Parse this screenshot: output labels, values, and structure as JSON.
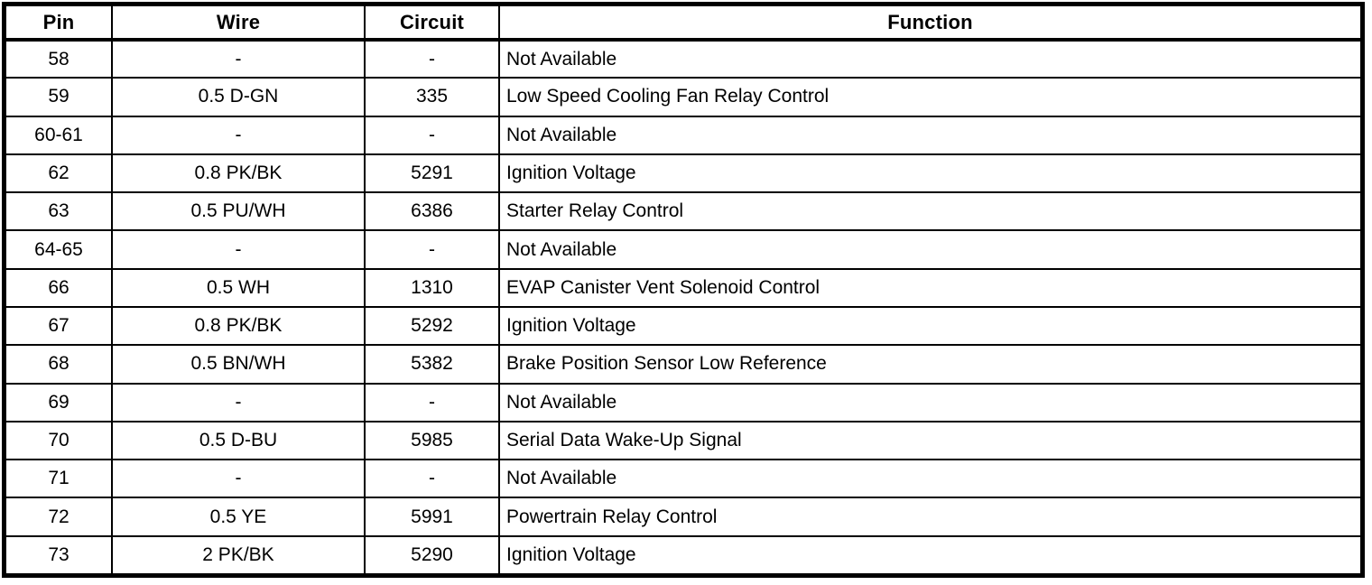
{
  "colors": {
    "border": "#000000",
    "background": "#ffffff",
    "text": "#000000"
  },
  "table": {
    "headers": [
      "Pin",
      "Wire",
      "Circuit",
      "Function"
    ],
    "rows": [
      {
        "pin": "58",
        "wire": "-",
        "circuit": "-",
        "function": "Not Available"
      },
      {
        "pin": "59",
        "wire": "0.5 D-GN",
        "circuit": "335",
        "function": "Low Speed Cooling Fan Relay Control"
      },
      {
        "pin": "60-61",
        "wire": "-",
        "circuit": "-",
        "function": "Not Available"
      },
      {
        "pin": "62",
        "wire": "0.8 PK/BK",
        "circuit": "5291",
        "function": "Ignition Voltage"
      },
      {
        "pin": "63",
        "wire": "0.5 PU/WH",
        "circuit": "6386",
        "function": "Starter Relay Control"
      },
      {
        "pin": "64-65",
        "wire": "-",
        "circuit": "-",
        "function": "Not Available"
      },
      {
        "pin": "66",
        "wire": "0.5 WH",
        "circuit": "1310",
        "function": "EVAP Canister Vent Solenoid Control"
      },
      {
        "pin": "67",
        "wire": "0.8 PK/BK",
        "circuit": "5292",
        "function": "Ignition Voltage"
      },
      {
        "pin": "68",
        "wire": "0.5 BN/WH",
        "circuit": "5382",
        "function": "Brake Position Sensor Low Reference"
      },
      {
        "pin": "69",
        "wire": "-",
        "circuit": "-",
        "function": "Not Available"
      },
      {
        "pin": "70",
        "wire": "0.5 D-BU",
        "circuit": "5985",
        "function": "Serial Data Wake-Up Signal"
      },
      {
        "pin": "71",
        "wire": "-",
        "circuit": "-",
        "function": "Not Available"
      },
      {
        "pin": "72",
        "wire": "0.5 YE",
        "circuit": "5991",
        "function": "Powertrain Relay Control"
      },
      {
        "pin": "73",
        "wire": "2 PK/BK",
        "circuit": "5290",
        "function": "Ignition Voltage"
      }
    ]
  }
}
